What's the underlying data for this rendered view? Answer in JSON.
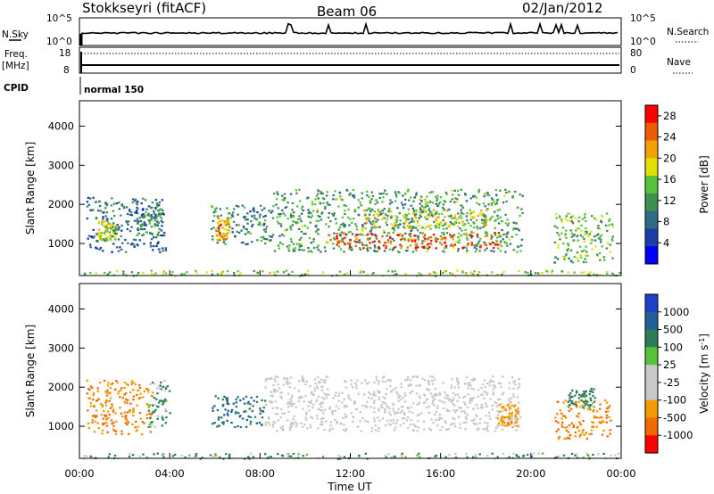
{
  "header": {
    "station": "Stokkseyri (fitACF)",
    "beam": "Beam 06",
    "date": "02/Jan/2012"
  },
  "status_panels": {
    "nsky_label": "N.Sky",
    "nsearch_label": "N.Search",
    "noise_ticks": [
      "10^5",
      "10^0"
    ],
    "freq_label": "Freq.",
    "freq_unit": "[MHz]",
    "freq_ticks": [
      "18",
      "8"
    ],
    "nave_label": "Nave",
    "nave_ticks": [
      "80",
      "0"
    ],
    "cpid_label": "CPID",
    "cpid_value": "normal 150"
  },
  "colors": {
    "power_scale": [
      "#0000ff",
      "#1a3fa6",
      "#2f6b84",
      "#3f8f4e",
      "#55c33a",
      "#e2e000",
      "#f2a300",
      "#f05a00",
      "#ff0000"
    ],
    "velocity_scale": [
      "#1e3fc8",
      "#225e9a",
      "#2e7d5a",
      "#55c33a",
      "#c8c8c8",
      "#c8c8c8",
      "#f29a00",
      "#f06a00",
      "#ff0000"
    ]
  },
  "chart_data": [
    {
      "type": "heatmap",
      "id": "power",
      "ylabel": "Slant Range [km]",
      "xlabel": "",
      "ylim": [
        180,
        4650
      ],
      "y_ticks": [
        "1000",
        "2000",
        "3000",
        "4000"
      ],
      "xlim": [
        "00:00",
        "24:00"
      ],
      "colorbar": {
        "label": "Power [dB]",
        "ticks": [
          "4",
          "8",
          "12",
          "16",
          "20",
          "24",
          "28"
        ],
        "range": [
          0,
          30
        ]
      },
      "regions": [
        {
          "t": [
            0.3,
            3.8
          ],
          "r": [
            800,
            2200
          ],
          "value": 8
        },
        {
          "t": [
            0.8,
            1.6
          ],
          "r": [
            1100,
            1600
          ],
          "value": 18
        },
        {
          "t": [
            2.5,
            3.6
          ],
          "r": [
            1200,
            2000
          ],
          "value": 12
        },
        {
          "t": [
            5.8,
            8.5
          ],
          "r": [
            1000,
            2000
          ],
          "value": 10
        },
        {
          "t": [
            6.0,
            6.6
          ],
          "r": [
            1100,
            1700
          ],
          "value": 22
        },
        {
          "t": [
            8.5,
            19.6
          ],
          "r": [
            800,
            2400
          ],
          "value": 12
        },
        {
          "t": [
            11.0,
            18.6
          ],
          "r": [
            900,
            1300
          ],
          "value": 26
        },
        {
          "t": [
            12.5,
            18.0
          ],
          "r": [
            1400,
            1900
          ],
          "value": 18
        },
        {
          "t": [
            21.0,
            23.6
          ],
          "r": [
            500,
            1800
          ],
          "value": 14
        },
        {
          "t": [
            0.0,
            24.0
          ],
          "r": [
            190,
            330
          ],
          "value": 16
        }
      ]
    },
    {
      "type": "heatmap",
      "id": "velocity",
      "ylabel": "Slant Range [km]",
      "xlabel": "Time UT",
      "ylim": [
        180,
        4650
      ],
      "y_ticks": [
        "1000",
        "2000",
        "3000",
        "4000"
      ],
      "xlim": [
        "00:00",
        "24:00"
      ],
      "x_ticks": [
        "00:00",
        "04:00",
        "08:00",
        "12:00",
        "16:00",
        "20:00",
        "00:00"
      ],
      "colorbar": {
        "label": "Velocity [m s",
        "label_exp": "-1",
        "label_close": "]",
        "ticks": [
          "1000",
          "500",
          "100",
          "25",
          "-25",
          "-100",
          "-500",
          "-1000"
        ]
      },
      "regions": [
        {
          "t": [
            0.3,
            3.2
          ],
          "r": [
            800,
            2200
          ],
          "value": -300
        },
        {
          "t": [
            3.0,
            4.0
          ],
          "r": [
            1000,
            2200
          ],
          "value": 100
        },
        {
          "t": [
            5.8,
            8.2
          ],
          "r": [
            1000,
            1800
          ],
          "value": 300
        },
        {
          "t": [
            8.2,
            19.5
          ],
          "r": [
            900,
            2300
          ],
          "value": 0
        },
        {
          "t": [
            18.5,
            19.4
          ],
          "r": [
            1000,
            1600
          ],
          "value": -200
        },
        {
          "t": [
            21.0,
            23.5
          ],
          "r": [
            700,
            1700
          ],
          "value": -300
        },
        {
          "t": [
            21.6,
            22.8
          ],
          "r": [
            1500,
            2000
          ],
          "value": 150
        },
        {
          "t": [
            0.0,
            24.0
          ],
          "r": [
            190,
            330
          ],
          "value": 60
        }
      ]
    }
  ]
}
